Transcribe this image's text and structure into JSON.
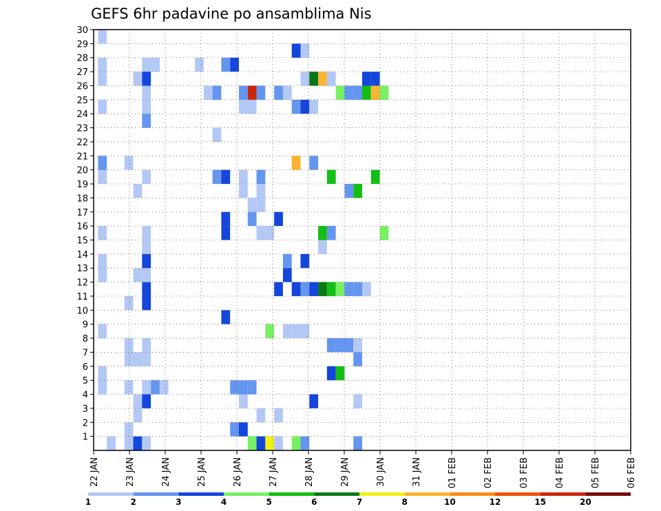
{
  "chart_data": {
    "type": "heatmap",
    "title": "GEFS 6hr padavine po ansamblima Nis",
    "xlabel": "",
    "ylabel": "",
    "x_ticks": [
      "22 JAN",
      "23 JAN",
      "24 JAN",
      "25 JAN",
      "26 JAN",
      "27 JAN",
      "28 JAN",
      "29 JAN",
      "30 JAN",
      "31 JAN",
      "01 FEB",
      "02 FEB",
      "03 FEB",
      "04 FEB",
      "05 FEB",
      "06 FEB"
    ],
    "x_unit": "6-hour step",
    "y_ticks": [
      "1",
      "2",
      "3",
      "4",
      "5",
      "6",
      "7",
      "8",
      "9",
      "10",
      "11",
      "12",
      "13",
      "14",
      "15",
      "16",
      "17",
      "18",
      "19",
      "20",
      "21",
      "22",
      "23",
      "24",
      "25",
      "26",
      "27",
      "28",
      "29",
      "30"
    ],
    "grid": true,
    "colorbar": {
      "levels": [
        "1",
        "2",
        "3",
        "4",
        "5",
        "6",
        "7",
        "8",
        "10",
        "12",
        "15",
        "20"
      ],
      "colors": [
        "#b4c8f5",
        "#6496f0",
        "#1446dc",
        "#78f064",
        "#14be14",
        "#0a7814",
        "#f0f014",
        "#fab432",
        "#fa8c14",
        "#f0500a",
        "#c8280a",
        "#780a0a"
      ]
    },
    "cells": [
      [
        2,
        0,
        1
      ],
      [
        4,
        0,
        1
      ],
      [
        5,
        0,
        3
      ],
      [
        6,
        0,
        1
      ],
      [
        18,
        0,
        4
      ],
      [
        19,
        0,
        3
      ],
      [
        20,
        0,
        7
      ],
      [
        21,
        0,
        1
      ],
      [
        23,
        0,
        4
      ],
      [
        24,
        0,
        2
      ],
      [
        30,
        0,
        2
      ],
      [
        4,
        1,
        1
      ],
      [
        16,
        1,
        2
      ],
      [
        17,
        1,
        3
      ],
      [
        5,
        2,
        1
      ],
      [
        19,
        2,
        1
      ],
      [
        21,
        2,
        1
      ],
      [
        5,
        3,
        1
      ],
      [
        6,
        3,
        3
      ],
      [
        17,
        3,
        1
      ],
      [
        25,
        3,
        3
      ],
      [
        30,
        3,
        1
      ],
      [
        1,
        4,
        1
      ],
      [
        4,
        4,
        1
      ],
      [
        6,
        4,
        1
      ],
      [
        7,
        4,
        2
      ],
      [
        8,
        4,
        1
      ],
      [
        16,
        4,
        2
      ],
      [
        17,
        4,
        2
      ],
      [
        18,
        4,
        2
      ],
      [
        1,
        5,
        1
      ],
      [
        27,
        5,
        3
      ],
      [
        28,
        5,
        5
      ],
      [
        4,
        6,
        1
      ],
      [
        5,
        6,
        1
      ],
      [
        6,
        6,
        1
      ],
      [
        30,
        6,
        2
      ],
      [
        4,
        7,
        1
      ],
      [
        6,
        7,
        1
      ],
      [
        27,
        7,
        2
      ],
      [
        28,
        7,
        2
      ],
      [
        29,
        7,
        2
      ],
      [
        30,
        7,
        1
      ],
      [
        1,
        8,
        1
      ],
      [
        20,
        8,
        4
      ],
      [
        22,
        8,
        1
      ],
      [
        23,
        8,
        1
      ],
      [
        24,
        8,
        1
      ],
      [
        15,
        9,
        3
      ],
      [
        4,
        10,
        1
      ],
      [
        6,
        10,
        3
      ],
      [
        6,
        11,
        3
      ],
      [
        21,
        11,
        3
      ],
      [
        23,
        11,
        3
      ],
      [
        24,
        11,
        2
      ],
      [
        25,
        11,
        3
      ],
      [
        26,
        11,
        6
      ],
      [
        27,
        11,
        5
      ],
      [
        28,
        11,
        4
      ],
      [
        29,
        11,
        2
      ],
      [
        30,
        11,
        2
      ],
      [
        31,
        11,
        1
      ],
      [
        1,
        12,
        1
      ],
      [
        5,
        12,
        1
      ],
      [
        6,
        12,
        1
      ],
      [
        22,
        12,
        3
      ],
      [
        1,
        13,
        1
      ],
      [
        6,
        13,
        3
      ],
      [
        22,
        13,
        2
      ],
      [
        24,
        13,
        3
      ],
      [
        6,
        14,
        1
      ],
      [
        26,
        14,
        1
      ],
      [
        1,
        15,
        1
      ],
      [
        6,
        15,
        1
      ],
      [
        15,
        15,
        3
      ],
      [
        19,
        15,
        1
      ],
      [
        20,
        15,
        1
      ],
      [
        26,
        15,
        5
      ],
      [
        27,
        15,
        2
      ],
      [
        33,
        15,
        4
      ],
      [
        15,
        16,
        3
      ],
      [
        18,
        16,
        2
      ],
      [
        21,
        16,
        3
      ],
      [
        18,
        17,
        1
      ],
      [
        19,
        17,
        1
      ],
      [
        5,
        18,
        1
      ],
      [
        17,
        18,
        1
      ],
      [
        19,
        18,
        1
      ],
      [
        29,
        18,
        2
      ],
      [
        30,
        18,
        5
      ],
      [
        1,
        19,
        1
      ],
      [
        6,
        19,
        1
      ],
      [
        14,
        19,
        2
      ],
      [
        15,
        19,
        3
      ],
      [
        17,
        19,
        1
      ],
      [
        19,
        19,
        2
      ],
      [
        27,
        19,
        5
      ],
      [
        32,
        19,
        5
      ],
      [
        1,
        20,
        2
      ],
      [
        4,
        20,
        1
      ],
      [
        23,
        20,
        8
      ],
      [
        25,
        20,
        2
      ],
      [
        14,
        22,
        1
      ],
      [
        6,
        23,
        2
      ],
      [
        1,
        24,
        1
      ],
      [
        6,
        24,
        1
      ],
      [
        17,
        24,
        1
      ],
      [
        18,
        24,
        1
      ],
      [
        23,
        24,
        2
      ],
      [
        24,
        24,
        3
      ],
      [
        25,
        24,
        1
      ],
      [
        6,
        25,
        1
      ],
      [
        13,
        25,
        1
      ],
      [
        14,
        25,
        2
      ],
      [
        17,
        25,
        2
      ],
      [
        18,
        25,
        11
      ],
      [
        19,
        25,
        2
      ],
      [
        21,
        25,
        2
      ],
      [
        22,
        25,
        1
      ],
      [
        28,
        25,
        4
      ],
      [
        29,
        25,
        2
      ],
      [
        30,
        25,
        2
      ],
      [
        31,
        25,
        5
      ],
      [
        32,
        25,
        8
      ],
      [
        33,
        25,
        4
      ],
      [
        1,
        26,
        1
      ],
      [
        5,
        26,
        1
      ],
      [
        6,
        26,
        3
      ],
      [
        24,
        26,
        1
      ],
      [
        25,
        26,
        6
      ],
      [
        26,
        26,
        8
      ],
      [
        27,
        26,
        1
      ],
      [
        31,
        26,
        3
      ],
      [
        32,
        26,
        3
      ],
      [
        1,
        27,
        1
      ],
      [
        6,
        27,
        1
      ],
      [
        7,
        27,
        1
      ],
      [
        12,
        27,
        1
      ],
      [
        15,
        27,
        2
      ],
      [
        16,
        27,
        3
      ],
      [
        23,
        28,
        3
      ],
      [
        24,
        28,
        1
      ],
      [
        1,
        29,
        1
      ],
      [
        1,
        30,
        1
      ],
      [
        7,
        30,
        1
      ],
      [
        19,
        30,
        3
      ],
      [
        21,
        30,
        1
      ],
      [
        32,
        30,
        1
      ],
      [
        5,
        31,
        1
      ],
      [
        6,
        31,
        1
      ],
      [
        29,
        31,
        1
      ],
      [
        30,
        31,
        3
      ],
      [
        31,
        31,
        4
      ],
      [
        32,
        31,
        1
      ]
    ]
  }
}
